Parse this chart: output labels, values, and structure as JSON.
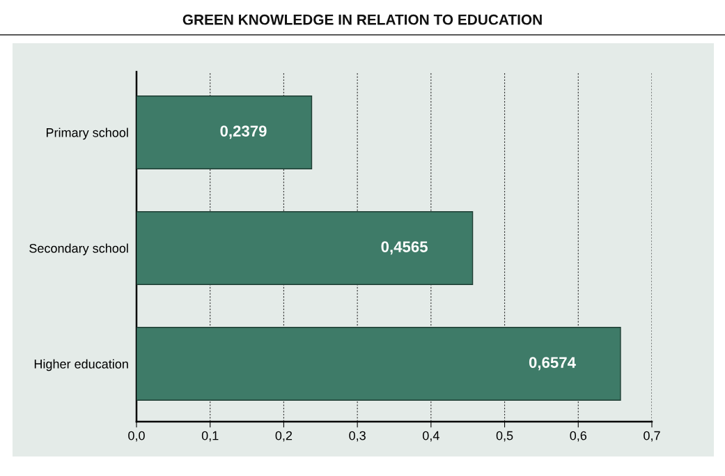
{
  "chart_data": {
    "type": "bar",
    "orientation": "horizontal",
    "title": "GREEN KNOWLEDGE IN RELATION TO EDUCATION",
    "categories": [
      "Primary school",
      "Secondary school",
      "Higher education"
    ],
    "values": [
      0.2379,
      0.4565,
      0.6574
    ],
    "color": "#3e7b68",
    "value_labels": [
      "0,2379",
      "0,4565",
      "0,6574"
    ],
    "xlim": [
      0,
      0.7
    ],
    "xticks": [
      {
        "value": 0,
        "label": "0,0"
      },
      {
        "value": 0.1,
        "label": "0,1"
      },
      {
        "value": 0.2,
        "label": "0,2"
      },
      {
        "value": 0.3,
        "label": "0,3"
      },
      {
        "value": 0.4,
        "label": "0,4"
      },
      {
        "value": 0.5,
        "label": "0,5"
      },
      {
        "value": 0.6,
        "label": "0,6"
      },
      {
        "value": 0.7,
        "label": "0,7"
      }
    ],
    "grid": "x"
  }
}
